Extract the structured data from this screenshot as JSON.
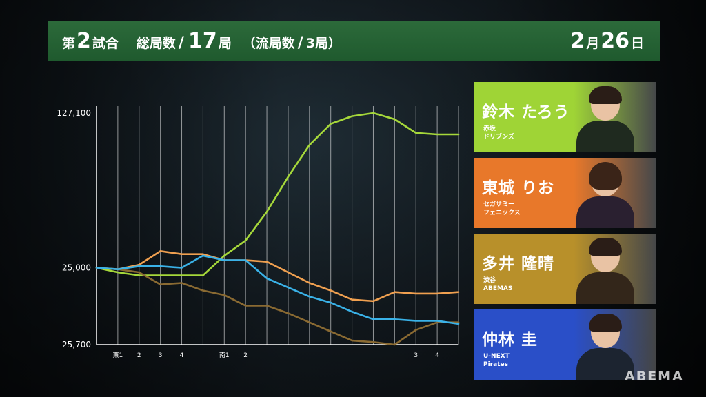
{
  "header": {
    "game_prefix": "第",
    "game_number": "2",
    "game_suffix": "試合",
    "total_prefix": "総局数",
    "total_number": "17",
    "total_suffix": "局",
    "draw_prefix": "（流局数",
    "draw_number": "3",
    "draw_suffix": "局）",
    "date_month": "2",
    "date_month_suffix": "月",
    "date_day": "26",
    "date_day_suffix": "日"
  },
  "players": [
    {
      "name": "鈴木 たろう",
      "team": "赤坂\nドリブンズ",
      "color": "#9fd436"
    },
    {
      "name": "東城 りお",
      "team": "セガサミー\nフェニックス",
      "color": "#e8782a"
    },
    {
      "name": "多井 隆晴",
      "team": "渋谷\nABEMAS",
      "color": "#b8902a"
    },
    {
      "name": "仲林 圭",
      "team": "U-NEXT\nPirates",
      "color": "#2a4fc8"
    }
  ],
  "watermark": "ABEMA",
  "chart_data": {
    "type": "line",
    "y_tick_labels": [
      "127,100",
      "25,000",
      "-25,700"
    ],
    "y_ticks": [
      127100,
      25000,
      -25700
    ],
    "ylim": [
      -25700,
      127100
    ],
    "x_tick_labels": [
      "東1",
      "2",
      "3",
      "4",
      "",
      "南1",
      "2",
      "",
      "",
      "",
      "",
      "",
      "",
      "",
      "3",
      "4",
      ""
    ],
    "x": [
      0,
      1,
      2,
      3,
      4,
      5,
      6,
      7,
      8,
      9,
      10,
      11,
      12,
      13,
      14,
      15,
      16,
      17
    ],
    "series": [
      {
        "name": "鈴木 たろう",
        "color": "#a6d83a",
        "values": [
          25000,
          22000,
          20000,
          20000,
          20000,
          20000,
          33000,
          43000,
          62000,
          85000,
          106000,
          120000,
          125000,
          127100,
          123000,
          114000,
          113000,
          113000
        ]
      },
      {
        "name": "東城 りお",
        "color": "#f0a050",
        "values": [
          25000,
          24000,
          27000,
          36000,
          34000,
          34000,
          30000,
          30000,
          29000,
          22000,
          15000,
          10000,
          4000,
          3000,
          9000,
          8000,
          8000,
          9000
        ]
      },
      {
        "name": "多井 隆晴",
        "color": "#8a6a32",
        "values": [
          25000,
          24000,
          22000,
          14000,
          15000,
          10000,
          7000,
          0,
          0,
          -5000,
          -11000,
          -17000,
          -23000,
          -24000,
          -25700,
          -16000,
          -11000,
          -11000
        ]
      },
      {
        "name": "仲林 圭",
        "color": "#3ab2e8",
        "values": [
          25000,
          24000,
          26000,
          26000,
          25000,
          33000,
          30000,
          30000,
          18000,
          12000,
          6000,
          2000,
          -4000,
          -9000,
          -9000,
          -10000,
          -10000,
          -12000
        ]
      }
    ]
  }
}
